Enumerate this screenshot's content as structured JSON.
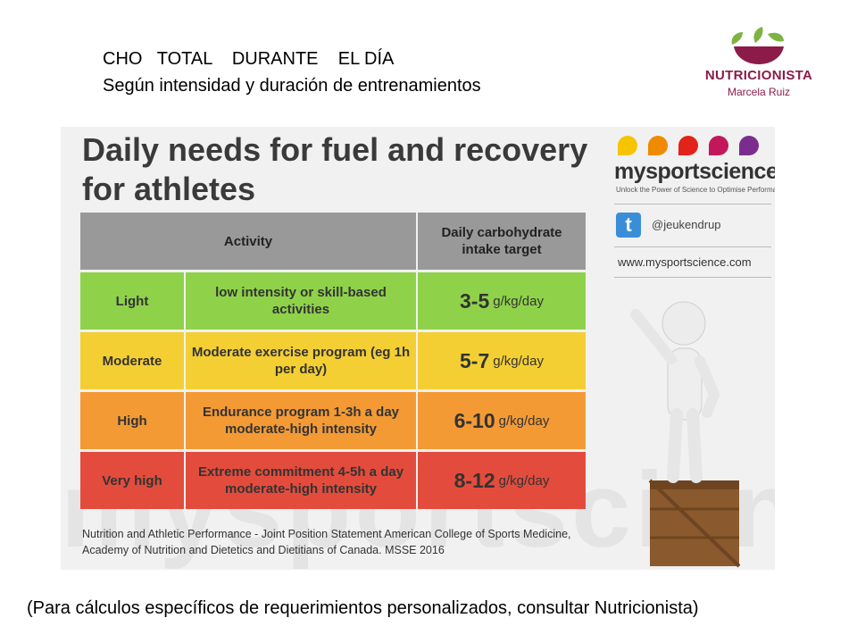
{
  "header": {
    "title": "CHO   TOTAL    DURANTE    EL DÍA",
    "subtitle": "Según intensidad y duración de entrenamientos"
  },
  "logo": {
    "name": "NUTRICIONISTA",
    "sub": "Marcela Ruiz",
    "color": "#8b1c4a",
    "leaf_color": "#7cb342"
  },
  "infographic": {
    "title": "Daily needs for fuel and recovery for athletes",
    "watermark": "mysportscience",
    "table": {
      "headers": [
        "Activity",
        "",
        "Daily carbohydrate intake target"
      ],
      "rows": [
        {
          "level": "Light",
          "activity": "low intensity or skill-based activities",
          "value": "3-5",
          "unit": "g/kg/day",
          "color": "#8fd24a"
        },
        {
          "level": "Moderate",
          "activity": "Moderate exercise program (eg 1h per day)",
          "value": "5-7",
          "unit": "g/kg/day",
          "color": "#f4cf33"
        },
        {
          "level": "High",
          "activity": "Endurance program 1-3h a day moderate-high intensity",
          "value": "6-10",
          "unit": "g/kg/day",
          "color": "#f49a35"
        },
        {
          "level": "Very high",
          "activity": "Extreme commitment 4-5h a day moderate-high intensity",
          "value": "8-12",
          "unit": "g/kg/day",
          "color": "#e34c3c"
        }
      ]
    },
    "citation": "Nutrition and Athletic Performance - Joint Position Statement American College of Sports Medicine, Academy of Nutrition and Dietetics and Dietitians of Canada. MSSE 2016"
  },
  "brand": {
    "name": "mysportscience",
    "tagline": "Unlock the Power of Science to Optimise Performance",
    "twitter_icon": "twitter-icon",
    "handle": "@jeukendrup",
    "url": "www.mysportscience.com",
    "circle_colors": [
      "#f7c400",
      "#f08a00",
      "#e2231a",
      "#c2185b",
      "#7b2d8e"
    ]
  },
  "footer": "(Para cálculos específicos de  requerimientos personalizados, consultar Nutricionista)"
}
